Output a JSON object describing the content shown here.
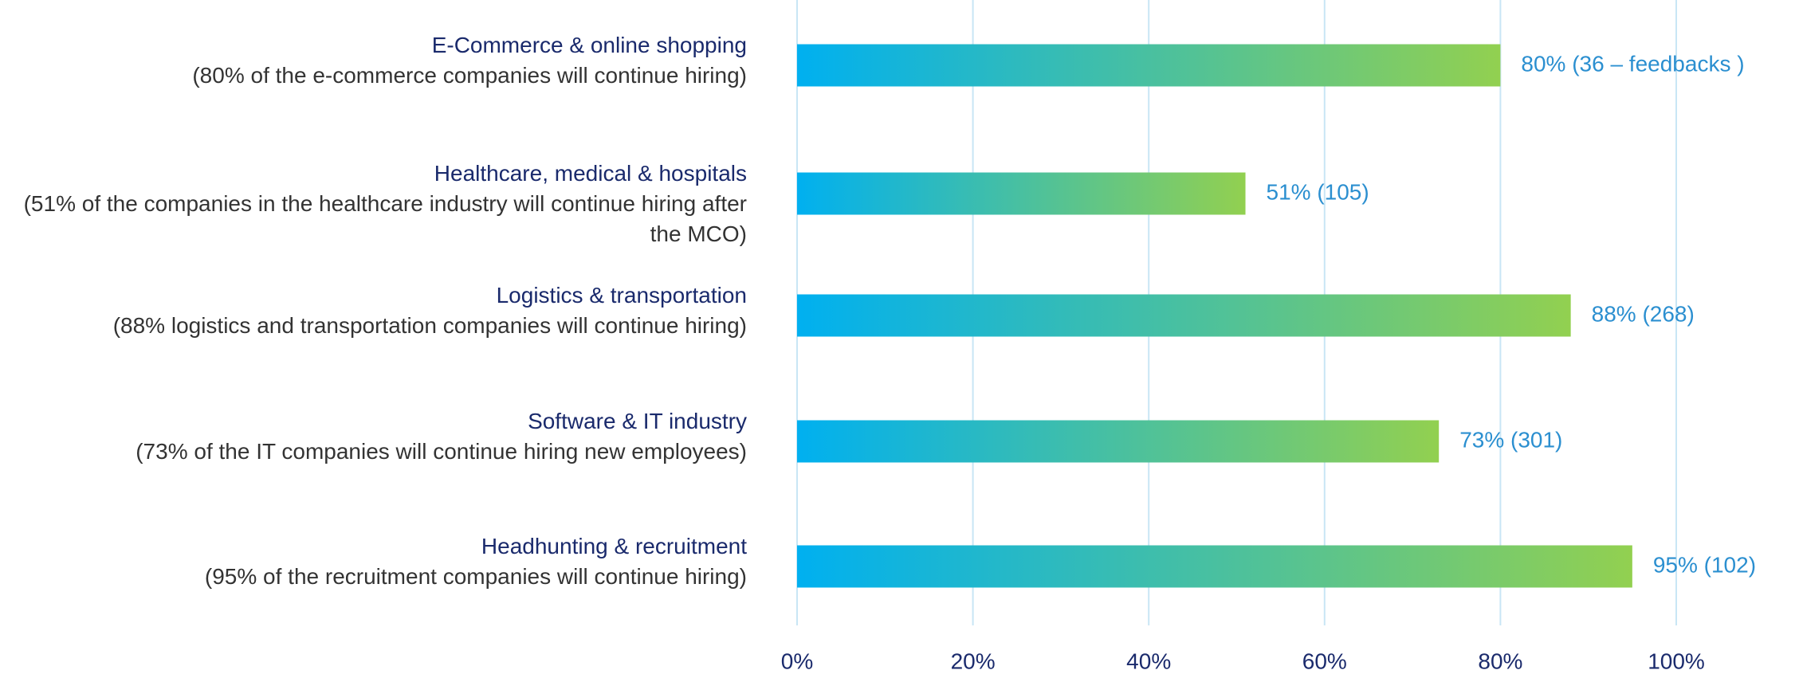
{
  "chart_data": {
    "type": "barh",
    "categories": [
      "E-Commerce & online shopping",
      "Healthcare, medical & hospitals",
      "Logistics & transportation",
      "Software & IT industry",
      "Headhunting & recruitment"
    ],
    "descriptions": [
      "(80% of the e-commerce companies will continue hiring)",
      "(51% of the companies in the healthcare industry will continue hiring after the MCO)",
      "(88% logistics and transportation companies will continue hiring)",
      "(73% of the IT companies will continue hiring new employees)",
      "(95% of the recruitment companies will continue hiring)"
    ],
    "values": [
      80,
      51,
      88,
      73,
      95
    ],
    "value_labels": [
      "80%  (36 – feedbacks )",
      "51% (105)",
      "88% (268)",
      "73%  (301)",
      "95%  (102)"
    ],
    "color_start": "#00b0f0",
    "color_end": "#92d050",
    "xlim": [
      0,
      100
    ],
    "xticks": [
      {
        "value": 0,
        "label": "0%"
      },
      {
        "value": 20,
        "label": "20%"
      },
      {
        "value": 40,
        "label": "40%"
      },
      {
        "value": 60,
        "label": "60%"
      },
      {
        "value": 80,
        "label": "80%"
      },
      {
        "value": 100,
        "label": "100%"
      }
    ],
    "grid": true
  }
}
